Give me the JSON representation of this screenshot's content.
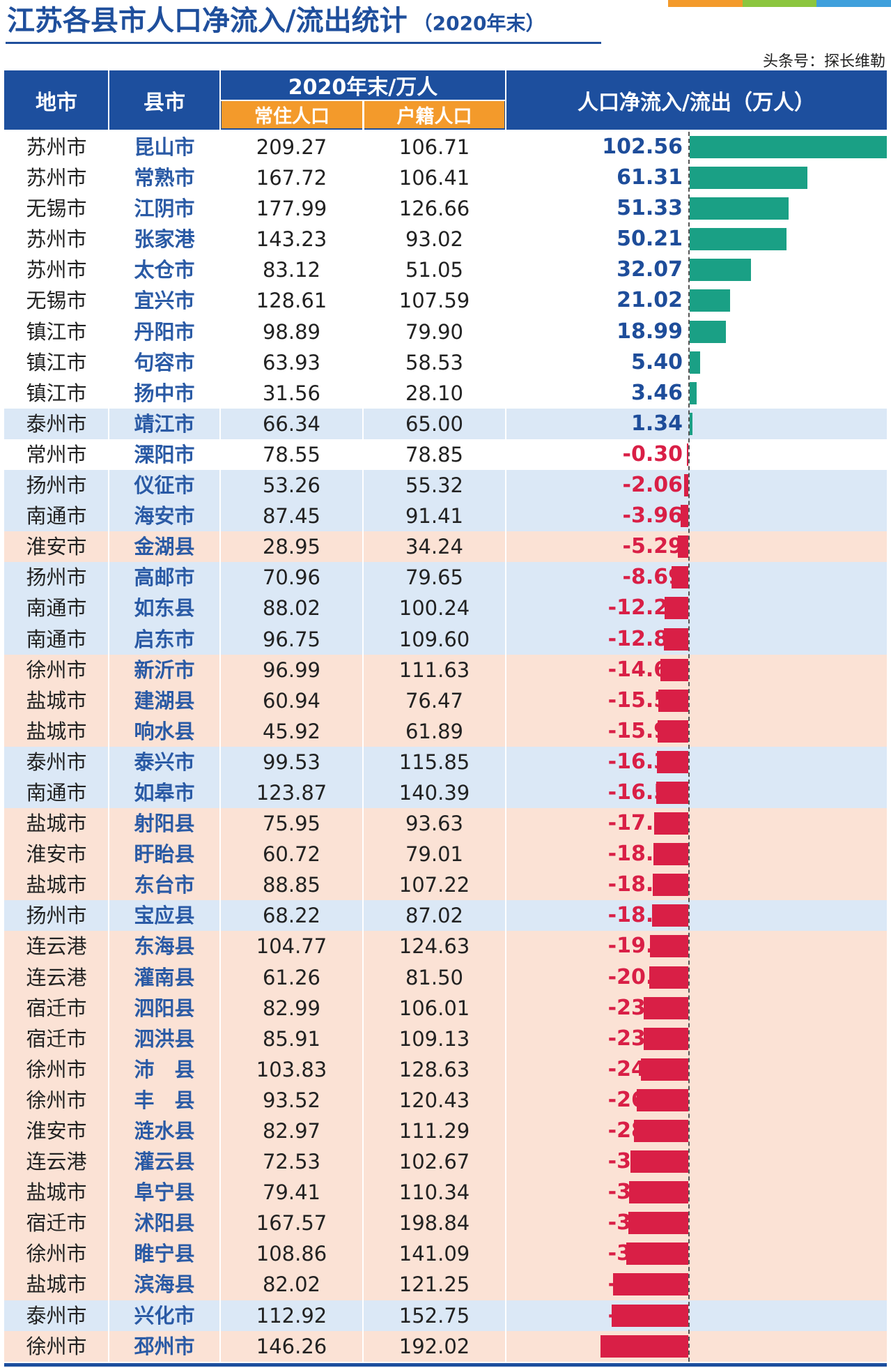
{
  "title": "江苏各县市人口净流入/流出统计",
  "subtitle": "（2020年末）",
  "credit": "头条号：探长维勒",
  "header": {
    "city": "地市",
    "county": "县市",
    "group": "2020年末/万人",
    "resident": "常住人口",
    "household": "户籍人口",
    "net": "人口净流入/流出（万人）"
  },
  "colors": {
    "header_bg": "#1d4f9e",
    "subheader_bg": "#f39a2b",
    "positive": "#1aa085",
    "negative": "#d91f46",
    "row_blue": "#dbe8f6",
    "row_peach": "#fbe2d5",
    "row_white": "#ffffff"
  },
  "chart_data": {
    "type": "table",
    "title": "江苏各县市人口净流入/流出统计",
    "columns": [
      "地市",
      "县市",
      "常住人口",
      "户籍人口",
      "人口净流入/流出（万人）"
    ],
    "value_range": [
      -45.76,
      102.56
    ],
    "rows": [
      {
        "city": "苏州市",
        "county": "昆山市",
        "resident": "209.27",
        "household": "106.71",
        "net": "102.56",
        "band": "white"
      },
      {
        "city": "苏州市",
        "county": "常熟市",
        "resident": "167.72",
        "household": "106.41",
        "net": "61.31",
        "band": "white"
      },
      {
        "city": "无锡市",
        "county": "江阴市",
        "resident": "177.99",
        "household": "126.66",
        "net": "51.33",
        "band": "white"
      },
      {
        "city": "苏州市",
        "county": "张家港",
        "resident": "143.23",
        "household": "93.02",
        "net": "50.21",
        "band": "white"
      },
      {
        "city": "苏州市",
        "county": "太仓市",
        "resident": "83.12",
        "household": "51.05",
        "net": "32.07",
        "band": "white"
      },
      {
        "city": "无锡市",
        "county": "宜兴市",
        "resident": "128.61",
        "household": "107.59",
        "net": "21.02",
        "band": "white"
      },
      {
        "city": "镇江市",
        "county": "丹阳市",
        "resident": "98.89",
        "household": "79.90",
        "net": "18.99",
        "band": "white"
      },
      {
        "city": "镇江市",
        "county": "句容市",
        "resident": "63.93",
        "household": "58.53",
        "net": "5.40",
        "band": "white"
      },
      {
        "city": "镇江市",
        "county": "扬中市",
        "resident": "31.56",
        "household": "28.10",
        "net": "3.46",
        "band": "white"
      },
      {
        "city": "泰州市",
        "county": "靖江市",
        "resident": "66.34",
        "household": "65.00",
        "net": "1.34",
        "band": "blue"
      },
      {
        "city": "常州市",
        "county": "溧阳市",
        "resident": "78.55",
        "household": "78.85",
        "net": "-0.30",
        "band": "white"
      },
      {
        "city": "扬州市",
        "county": "仪征市",
        "resident": "53.26",
        "household": "55.32",
        "net": "-2.06",
        "band": "blue"
      },
      {
        "city": "南通市",
        "county": "海安市",
        "resident": "87.45",
        "household": "91.41",
        "net": "-3.96",
        "band": "blue"
      },
      {
        "city": "淮安市",
        "county": "金湖县",
        "resident": "28.95",
        "household": "34.24",
        "net": "-5.29",
        "band": "peach"
      },
      {
        "city": "扬州市",
        "county": "高邮市",
        "resident": "70.96",
        "household": "79.65",
        "net": "-8.69",
        "band": "blue"
      },
      {
        "city": "南通市",
        "county": "如东县",
        "resident": "88.02",
        "household": "100.24",
        "net": "-12.22",
        "band": "blue"
      },
      {
        "city": "南通市",
        "county": "启东市",
        "resident": "96.75",
        "household": "109.60",
        "net": "-12.85",
        "band": "blue"
      },
      {
        "city": "徐州市",
        "county": "新沂市",
        "resident": "96.99",
        "household": "111.63",
        "net": "-14.64",
        "band": "peach"
      },
      {
        "city": "盐城市",
        "county": "建湖县",
        "resident": "60.94",
        "household": "76.47",
        "net": "-15.53",
        "band": "peach"
      },
      {
        "city": "盐城市",
        "county": "响水县",
        "resident": "45.92",
        "household": "61.89",
        "net": "-15.97",
        "band": "peach"
      },
      {
        "city": "泰州市",
        "county": "泰兴市",
        "resident": "99.53",
        "household": "115.85",
        "net": "-16.32",
        "band": "blue"
      },
      {
        "city": "南通市",
        "county": "如皋市",
        "resident": "123.87",
        "household": "140.39",
        "net": "-16.52",
        "band": "blue"
      },
      {
        "city": "盐城市",
        "county": "射阳县",
        "resident": "75.95",
        "household": "93.63",
        "net": "-17.68",
        "band": "peach"
      },
      {
        "city": "淮安市",
        "county": "盱眙县",
        "resident": "60.72",
        "household": "79.01",
        "net": "-18.29",
        "band": "peach"
      },
      {
        "city": "盐城市",
        "county": "东台市",
        "resident": "88.85",
        "household": "107.22",
        "net": "-18.37",
        "band": "peach"
      },
      {
        "city": "扬州市",
        "county": "宝应县",
        "resident": "68.22",
        "household": "87.02",
        "net": "-18.80",
        "band": "blue"
      },
      {
        "city": "连云港",
        "county": "东海县",
        "resident": "104.77",
        "household": "124.63",
        "net": "-19.86",
        "band": "peach"
      },
      {
        "city": "连云港",
        "county": "灌南县",
        "resident": "61.26",
        "household": "81.50",
        "net": "-20.24",
        "band": "peach"
      },
      {
        "city": "宿迁市",
        "county": "泗阳县",
        "resident": "82.99",
        "household": "106.01",
        "net": "-23.02",
        "band": "peach"
      },
      {
        "city": "宿迁市",
        "county": "泗洪县",
        "resident": "85.91",
        "household": "109.13",
        "net": "-23.22",
        "band": "peach"
      },
      {
        "city": "徐州市",
        "county": "沛　县",
        "resident": "103.83",
        "household": "128.63",
        "net": "-24.80",
        "band": "peach"
      },
      {
        "city": "徐州市",
        "county": "丰　县",
        "resident": "93.52",
        "household": "120.43",
        "net": "-26.91",
        "band": "peach"
      },
      {
        "city": "淮安市",
        "county": "涟水县",
        "resident": "82.97",
        "household": "111.29",
        "net": "-28.32",
        "band": "peach"
      },
      {
        "city": "连云港",
        "county": "灌云县",
        "resident": "72.53",
        "household": "102.67",
        "net": "-30.14",
        "band": "peach"
      },
      {
        "city": "盐城市",
        "county": "阜宁县",
        "resident": "79.41",
        "household": "110.34",
        "net": "-30.93",
        "band": "peach"
      },
      {
        "city": "宿迁市",
        "county": "沭阳县",
        "resident": "167.57",
        "household": "198.84",
        "net": "-31.27",
        "band": "peach"
      },
      {
        "city": "徐州市",
        "county": "睢宁县",
        "resident": "108.86",
        "household": "141.09",
        "net": "-32.23",
        "band": "peach"
      },
      {
        "city": "盐城市",
        "county": "滨海县",
        "resident": "82.02",
        "household": "121.25",
        "net": "-39.23",
        "band": "peach"
      },
      {
        "city": "泰州市",
        "county": "兴化市",
        "resident": "112.92",
        "household": "152.75",
        "net": "-39.83",
        "band": "blue"
      },
      {
        "city": "徐州市",
        "county": "邳州市",
        "resident": "146.26",
        "household": "192.02",
        "net": "-45.76",
        "band": "peach"
      }
    ]
  }
}
